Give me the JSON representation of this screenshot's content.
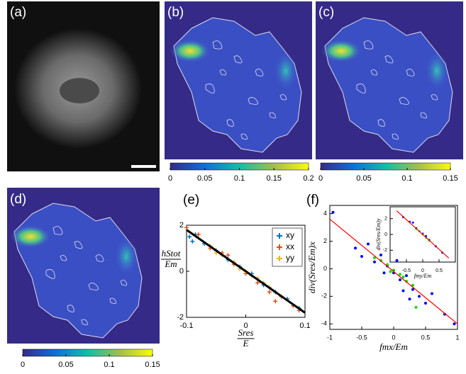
{
  "panels": {
    "labels": [
      "(a)",
      "(b)",
      "(c)",
      "(d)",
      "(e)",
      "(f)"
    ]
  },
  "colorbars": [
    {
      "lim": [
        0,
        0.2
      ],
      "ticks": [
        0,
        0.05,
        0.1,
        0.15,
        0.2
      ]
    },
    {
      "lim": [
        0,
        0.15
      ],
      "ticks": [
        0,
        0.05,
        0.1,
        0.15
      ]
    },
    {
      "lim": [
        0,
        0.15
      ],
      "ticks": [
        0,
        0.05,
        0.1,
        0.15
      ]
    }
  ],
  "chart_data": [
    {
      "type": "scatter",
      "xlabel": {
        "numerator": "Sres",
        "denominator": "E"
      },
      "ylabel": {
        "numerator": "hStot",
        "denominator": "Em"
      },
      "xlim": [
        -0.1,
        0.1
      ],
      "ylim": [
        -2,
        2
      ],
      "xticks": [
        -0.1,
        0,
        0.1
      ],
      "yticks": [
        -2,
        0,
        2
      ],
      "legend": "top-right",
      "series": [
        {
          "name": "xy",
          "color": "#0072bd",
          "marker": "plus",
          "x": [
            -0.095,
            -0.09,
            -0.07,
            -0.05,
            -0.03,
            -0.01,
            0.01,
            0.03,
            0.05,
            0.07,
            0.09,
            -0.085
          ],
          "values": [
            1.5,
            1.3,
            1.2,
            0.9,
            0.5,
            0.2,
            -0.1,
            -0.6,
            -0.9,
            -1.2,
            -1.6,
            1.6
          ]
        },
        {
          "name": "xx",
          "color": "#d95319",
          "marker": "plus",
          "x": [
            -0.1,
            -0.08,
            -0.06,
            -0.04,
            -0.02,
            0,
            0.02,
            0.04,
            0.06,
            0.08,
            0.09,
            0.05,
            -0.03
          ],
          "values": [
            1.9,
            1.6,
            1.0,
            0.8,
            0.3,
            -0.1,
            -0.5,
            -0.9,
            -1.1,
            -1.5,
            -1.7,
            -1.3,
            0.7
          ]
        },
        {
          "name": "yy",
          "color": "#edb120",
          "marker": "plus",
          "x": [
            -0.06,
            -0.04,
            -0.02,
            0,
            0.01,
            0.02,
            0.03,
            -0.01,
            0.04,
            -0.05
          ],
          "values": [
            1.1,
            0.7,
            0.4,
            0.0,
            -0.2,
            -0.3,
            -0.5,
            0.1,
            -0.7,
            0.8
          ]
        }
      ],
      "fit_line": {
        "color": "#000000",
        "x": [
          -0.1,
          0.1
        ],
        "values": [
          1.8,
          -1.8
        ]
      }
    },
    {
      "type": "scatter",
      "xlabel": "fmx/Em",
      "ylabel": "div(Sres/Em)x",
      "xlim": [
        -1,
        1
      ],
      "ylim": [
        -4.4,
        4.6
      ],
      "xticks": [
        -1,
        -0.5,
        0,
        0.5,
        1
      ],
      "yticks": [
        -4,
        -2,
        0,
        2,
        4
      ],
      "series": [
        {
          "color": "#0000ff",
          "marker": "dot",
          "x": [
            -0.95,
            -0.6,
            -0.4,
            -0.3,
            -0.2,
            -0.1,
            0,
            0.1,
            0.2,
            0.3,
            0.4,
            0.5,
            0.6,
            0.8,
            0.95,
            -0.5,
            0.15,
            -0.15,
            0.25,
            0.05
          ],
          "values": [
            4.1,
            1.5,
            1.8,
            0.5,
            1.0,
            0.2,
            -0.3,
            -0.8,
            -0.5,
            -1.5,
            -2.0,
            -2.5,
            -1.8,
            -3.3,
            -4.0,
            0.9,
            -1.6,
            -0.3,
            -2.2,
            0.6
          ]
        },
        {
          "color": "#00dd00",
          "marker": "dot",
          "x": [
            -0.3,
            -0.2,
            -0.1,
            0,
            0.1,
            0.2,
            0.3,
            -0.05,
            0.15,
            0.35
          ],
          "values": [
            0.8,
            0.6,
            0.3,
            -0.1,
            -0.4,
            -0.9,
            -1.2,
            -0.2,
            -0.6,
            -2.8
          ]
        }
      ],
      "fit_line": {
        "color": "#ff0000",
        "x": [
          -1,
          1
        ],
        "values": [
          3.6,
          -4.0
        ]
      }
    },
    {
      "type": "scatter",
      "xlabel": "fmy/Em",
      "ylabel": "div(Sres/Em)y",
      "xlim": [
        -1,
        1
      ],
      "ylim": [
        -3.5,
        3.5
      ],
      "xticks": [
        -0.5,
        0,
        0.5
      ],
      "yticks": [
        -2,
        0,
        2
      ],
      "series": [
        {
          "color": "#0000ff",
          "marker": "dot",
          "x": [
            -0.6,
            -0.4,
            -0.2,
            0,
            0.2,
            0.4,
            0.6,
            -0.3,
            0.1
          ],
          "values": [
            2.2,
            1.6,
            0.8,
            0.1,
            -0.7,
            -1.5,
            -2.3,
            1.5,
            -0.2
          ]
        },
        {
          "color": "#00dd00",
          "marker": "dot",
          "x": [
            -0.2,
            -0.1,
            0,
            0.1,
            0.2
          ],
          "values": [
            0.7,
            0.4,
            0.0,
            -0.4,
            -0.8
          ]
        }
      ],
      "fit_line": {
        "color": "#ff0000",
        "x": [
          -0.8,
          0.8
        ],
        "values": [
          3.0,
          -3.0
        ]
      }
    }
  ]
}
